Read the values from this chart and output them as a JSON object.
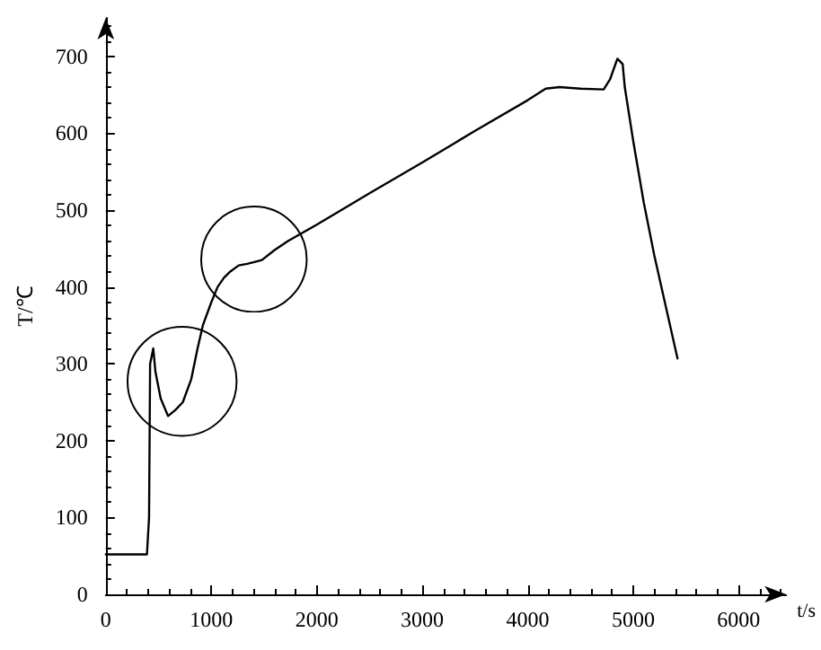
{
  "chart_data": {
    "type": "line",
    "xlabel": "t/s",
    "ylabel": "T/℃",
    "xlim": [
      0,
      6450
    ],
    "ylim": [
      0,
      750
    ],
    "xticks": [
      0,
      1000,
      2000,
      3000,
      4000,
      5000,
      6000
    ],
    "yticks": [
      0,
      100,
      200,
      300,
      400,
      500,
      600,
      700
    ],
    "grid": false,
    "marker": "none",
    "line_style": "solid",
    "series": [
      {
        "color": "#000000",
        "x": [
          0,
          390,
          410,
          420,
          450,
          470,
          520,
          590,
          660,
          730,
          810,
          870,
          920,
          1000,
          1060,
          1120,
          1180,
          1260,
          1340,
          1400,
          1480,
          1600,
          1730,
          2000,
          2500,
          3000,
          3500,
          4000,
          4170,
          4300,
          4500,
          4720,
          4780,
          4850,
          4900,
          4920,
          5000,
          5100,
          5200,
          5300,
          5420
        ],
        "values": [
          52,
          52,
          100,
          300,
          320,
          290,
          255,
          232,
          240,
          250,
          280,
          320,
          350,
          380,
          400,
          412,
          420,
          428,
          430,
          432,
          435,
          448,
          460,
          481,
          522,
          562,
          603,
          643,
          658,
          660,
          658,
          657,
          670,
          697,
          690,
          660,
          590,
          510,
          441,
          380,
          307
        ]
      }
    ]
  }
}
